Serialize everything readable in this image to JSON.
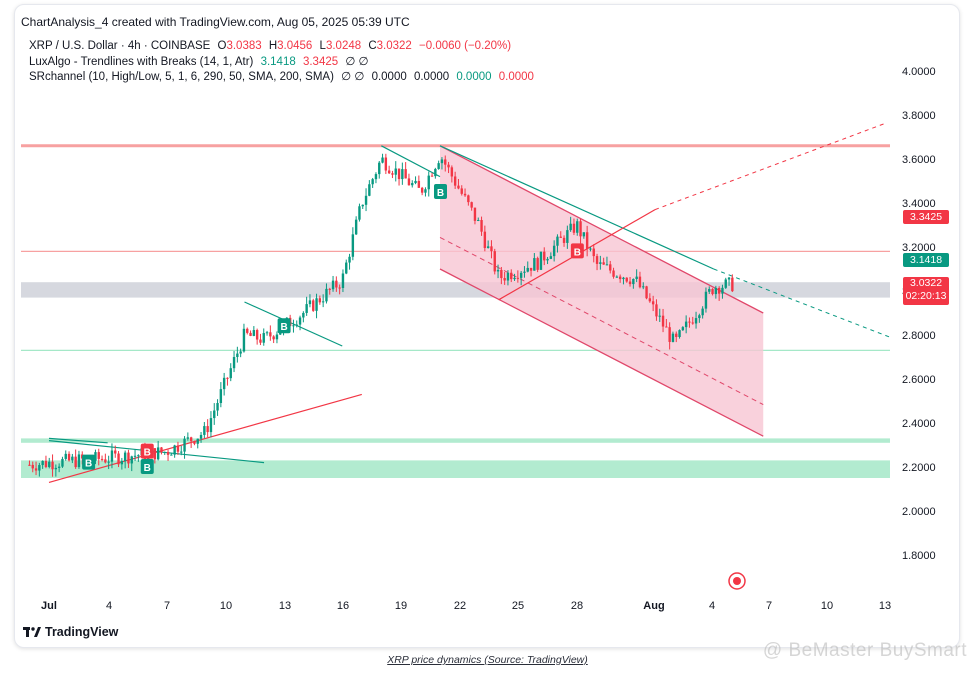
{
  "header": {
    "credit": "ChartAnalysis_4 created with TradingView.com, Aug 05, 2025 05:39 UTC"
  },
  "legend": {
    "row1": {
      "symbol": "XRP / U.S. Dollar · 4h · COINBASE",
      "o_label": "O",
      "o_value": "3.0383",
      "h_label": "H",
      "h_value": "3.0456",
      "l_label": "L",
      "l_value": "3.0248",
      "c_label": "C",
      "c_value": "3.0322",
      "change": "−0.0060 (−0.20%)"
    },
    "row2": {
      "name": "LuxAlgo - Trendlines with Breaks (14, 1, Atr)",
      "v1": "3.1418",
      "v2": "3.3425",
      "icons": "∅ ∅"
    },
    "row3": {
      "name": "SRchannel (10, High/Low, 5, 1, 6, 290, 50, SMA, 200, SMA)",
      "icons": "∅ ∅",
      "v1": "0.0000",
      "v2": "0.0000",
      "v3": "0.0000",
      "v4": "0.0000"
    }
  },
  "price_tags": {
    "upper_break": "3.3425",
    "lower_break": "3.1418",
    "last_price": "3.0322",
    "countdown": "02:20:13"
  },
  "brand": "TradingView",
  "caption": "XRP price dynamics (Source: TradingView)",
  "watermark": "@ BeMaster BuySmart",
  "colors": {
    "up": "#089981",
    "down": "#f23645",
    "channel_fill": "#f7c6d3",
    "resistance": "#f7a1a1",
    "support": "#a5e8c8",
    "gray_zone": "#d1d4dc"
  },
  "chart_data": {
    "type": "candlestick",
    "ylim": [
      1.7,
      4.1
    ],
    "y_ticks": [
      "4.0000",
      "3.8000",
      "3.6000",
      "3.4000",
      "3.2000",
      "3.0000",
      "2.8000",
      "2.6000",
      "2.4000",
      "2.2000",
      "2.0000",
      "1.8000"
    ],
    "x_ticks": [
      "Jul",
      "4",
      "7",
      "10",
      "13",
      "16",
      "19",
      "22",
      "25",
      "28",
      "Aug",
      "4",
      "7",
      "10",
      "13"
    ],
    "approx_close_path": [
      {
        "date": "Jun 29",
        "close": 2.21
      },
      {
        "date": "Jul 1",
        "close": 2.22
      },
      {
        "date": "Jul 4",
        "close": 2.24
      },
      {
        "date": "Jul 7",
        "close": 2.27
      },
      {
        "date": "Jul 9",
        "close": 2.36
      },
      {
        "date": "Jul 11",
        "close": 2.8
      },
      {
        "date": "Jul 12",
        "close": 2.78
      },
      {
        "date": "Jul 14",
        "close": 2.9
      },
      {
        "date": "Jul 16",
        "close": 3.05
      },
      {
        "date": "Jul 17",
        "close": 3.4
      },
      {
        "date": "Jul 18",
        "close": 3.6
      },
      {
        "date": "Jul 20",
        "close": 3.45
      },
      {
        "date": "Jul 21",
        "close": 3.62
      },
      {
        "date": "Jul 23",
        "close": 3.3
      },
      {
        "date": "Jul 24",
        "close": 3.06
      },
      {
        "date": "Jul 26",
        "close": 3.13
      },
      {
        "date": "Jul 28",
        "close": 3.3
      },
      {
        "date": "Jul 29",
        "close": 3.12
      },
      {
        "date": "Jul 31",
        "close": 3.05
      },
      {
        "date": "Aug 2",
        "close": 2.76
      },
      {
        "date": "Aug 4",
        "close": 3.02
      },
      {
        "date": "Aug 5",
        "close": 3.03
      }
    ],
    "horizontal_levels": [
      {
        "kind": "resistance",
        "value": 3.66
      },
      {
        "kind": "resistance",
        "value": 3.18
      },
      {
        "kind": "zone",
        "from": 2.97,
        "to": 3.04
      },
      {
        "kind": "support",
        "value": 2.73
      },
      {
        "kind": "support-zone",
        "from": 2.31,
        "to": 2.33
      },
      {
        "kind": "support-zone",
        "from": 2.15,
        "to": 2.23
      }
    ],
    "break_signals": [
      {
        "date": "Jul 3",
        "type": "B",
        "dir": "up"
      },
      {
        "date": "Jul 6",
        "type": "B",
        "dir": "down"
      },
      {
        "date": "Jul 6",
        "type": "B",
        "dir": "up"
      },
      {
        "date": "Jul 13",
        "type": "B",
        "dir": "up"
      },
      {
        "date": "Jul 21",
        "type": "B",
        "dir": "up"
      },
      {
        "date": "Jul 28",
        "type": "B",
        "dir": "down"
      }
    ],
    "last_price": 3.0322
  }
}
